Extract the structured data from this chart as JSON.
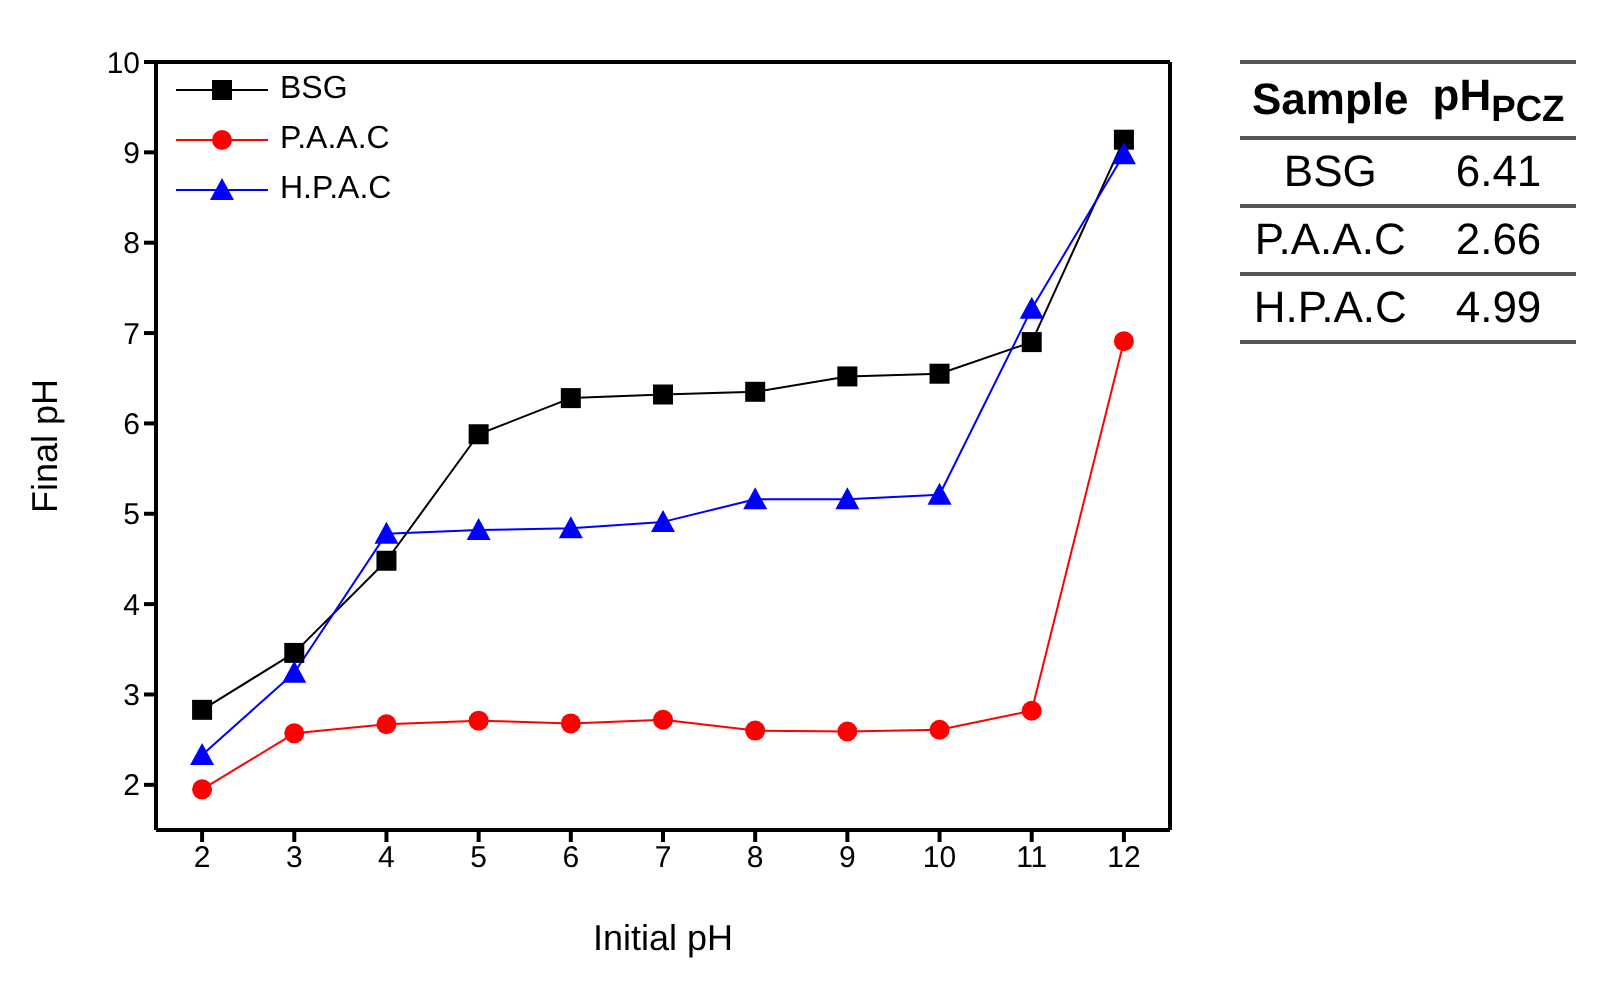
{
  "chart_data": {
    "type": "line",
    "xlabel": "Initial pH",
    "ylabel": "Final pH",
    "x": [
      2,
      3,
      4,
      5,
      6,
      7,
      8,
      9,
      10,
      11,
      12
    ],
    "series": [
      {
        "name": "BSG",
        "color": "#000000",
        "marker": "square",
        "values": [
          2.83,
          3.46,
          4.48,
          5.88,
          6.28,
          6.32,
          6.35,
          6.52,
          6.55,
          6.9,
          9.14
        ]
      },
      {
        "name": "P.A.A.C",
        "color": "#ff0000",
        "marker": "circle",
        "values": [
          1.95,
          2.57,
          2.67,
          2.71,
          2.68,
          2.72,
          2.6,
          2.59,
          2.61,
          2.82,
          6.91
        ]
      },
      {
        "name": "H.P.A.C",
        "color": "#0000ff",
        "marker": "triangle",
        "values": [
          2.33,
          3.24,
          4.78,
          4.82,
          4.84,
          4.91,
          5.16,
          5.16,
          5.21,
          7.27,
          8.98
        ]
      }
    ],
    "xlim": [
      1.5,
      12.5
    ],
    "xticks": [
      2,
      3,
      4,
      5,
      6,
      7,
      8,
      9,
      10,
      11,
      12
    ],
    "ylim": [
      1.5,
      10
    ],
    "yticks": [
      2,
      3,
      4,
      5,
      6,
      7,
      8,
      9,
      10
    ],
    "grid": false,
    "legend": "top left",
    "annotations": [
      "Sample",
      "pH$_{PCZ}$",
      "BSG",
      "6.41",
      "P.A.A.C",
      "2.66",
      "H.P.A.C",
      "4.99"
    ]
  }
}
